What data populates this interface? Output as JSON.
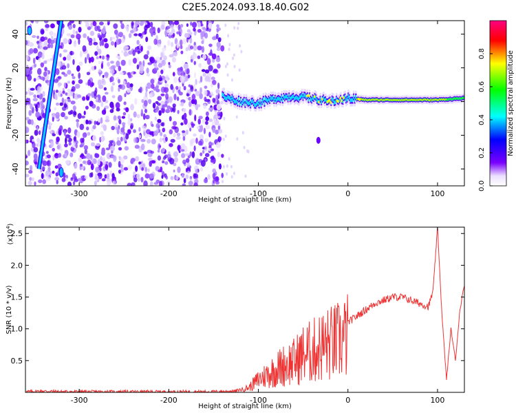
{
  "title": "C2E5.2024.093.18.40.G02",
  "chart_data": [
    {
      "type": "heatmap",
      "xlabel": "Height of straight line (km)",
      "ylabel": "Frequency (Hz)",
      "xlim": [
        -360,
        130
      ],
      "ylim": [
        -50,
        48
      ],
      "xticks": [
        -300,
        -200,
        -100,
        0,
        100
      ],
      "yticks": [
        -40,
        -20,
        0,
        20,
        40
      ],
      "colorbar": {
        "label": "Normalized spectral amplitude",
        "range": [
          0.0,
          1.0
        ],
        "ticks": [
          "0.0",
          "0.2",
          "0.4",
          "0.6",
          "0.8"
        ],
        "colors": [
          "#ffffff",
          "#6a00ff",
          "#0000ff",
          "#00ffff",
          "#00ff00",
          "#ffff00",
          "#ff0000",
          "#ff00aa"
        ]
      },
      "features": {
        "noise_region_x": [
          -360,
          -140
        ],
        "signal_track": {
          "x": [
            -140,
            -120,
            -100,
            -80,
            -60,
            -40,
            -20,
            0,
            20,
            60,
            100,
            130
          ],
          "y": [
            3,
            0,
            -1,
            2,
            3,
            2,
            0,
            2,
            1,
            1,
            1,
            2
          ]
        },
        "diagonal_line": {
          "x": [
            -345,
            -320
          ],
          "y": [
            -40,
            48
          ]
        }
      }
    },
    {
      "type": "line",
      "xlabel": "Height of straight line (km)",
      "ylabel": "SNR (10 * v/v)",
      "yscale_label": "(x10",
      "yscale_exp": "4",
      "xlim": [
        -360,
        130
      ],
      "ylim": [
        0,
        2.6
      ],
      "xticks": [
        -300,
        -200,
        -100,
        0,
        100
      ],
      "yticks": [
        "0.5",
        "1.0",
        "1.5",
        "2.0",
        "2.5"
      ],
      "line_color": "#ee3333",
      "series": [
        {
          "x": [
            -360,
            -340,
            -320,
            -300,
            -250,
            -200,
            -150,
            -125,
            -110,
            -100,
            -90,
            -80,
            -70,
            -60,
            -50,
            -40,
            -30,
            -20,
            -10,
            0,
            10,
            20,
            30,
            40,
            50,
            60,
            70,
            80,
            90,
            95,
            100,
            105,
            110,
            115,
            120,
            125,
            130
          ],
          "values": [
            0.01,
            0.02,
            0.01,
            0.01,
            0.01,
            0.01,
            0.01,
            0.02,
            0.1,
            0.25,
            0.35,
            0.45,
            0.55,
            0.6,
            0.75,
            0.8,
            0.9,
            0.95,
            1.0,
            1.1,
            1.2,
            1.3,
            1.4,
            1.45,
            1.5,
            1.5,
            1.45,
            1.4,
            1.35,
            1.6,
            2.6,
            1.2,
            0.2,
            1.0,
            0.5,
            1.3,
            1.7
          ]
        }
      ]
    }
  ]
}
